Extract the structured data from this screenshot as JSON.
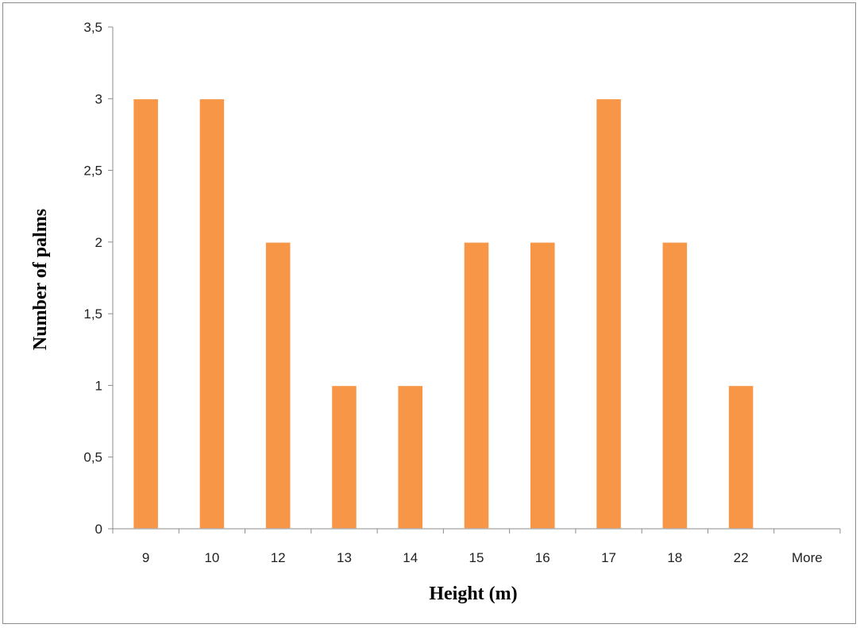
{
  "chart_data": {
    "type": "bar",
    "categories": [
      "9",
      "10",
      "12",
      "13",
      "14",
      "15",
      "16",
      "17",
      "18",
      "22",
      "More"
    ],
    "values": [
      3,
      3,
      2,
      1,
      1,
      2,
      2,
      3,
      2,
      1,
      0
    ],
    "xlabel": "Height (m)",
    "ylabel": "Number of palms",
    "ylim": [
      0,
      3.5
    ],
    "yticks": [
      "0",
      "0,5",
      "1",
      "1,5",
      "2",
      "2,5",
      "3",
      "3,5"
    ],
    "grid": false,
    "legend": "none",
    "bar_color": "#F79646"
  }
}
